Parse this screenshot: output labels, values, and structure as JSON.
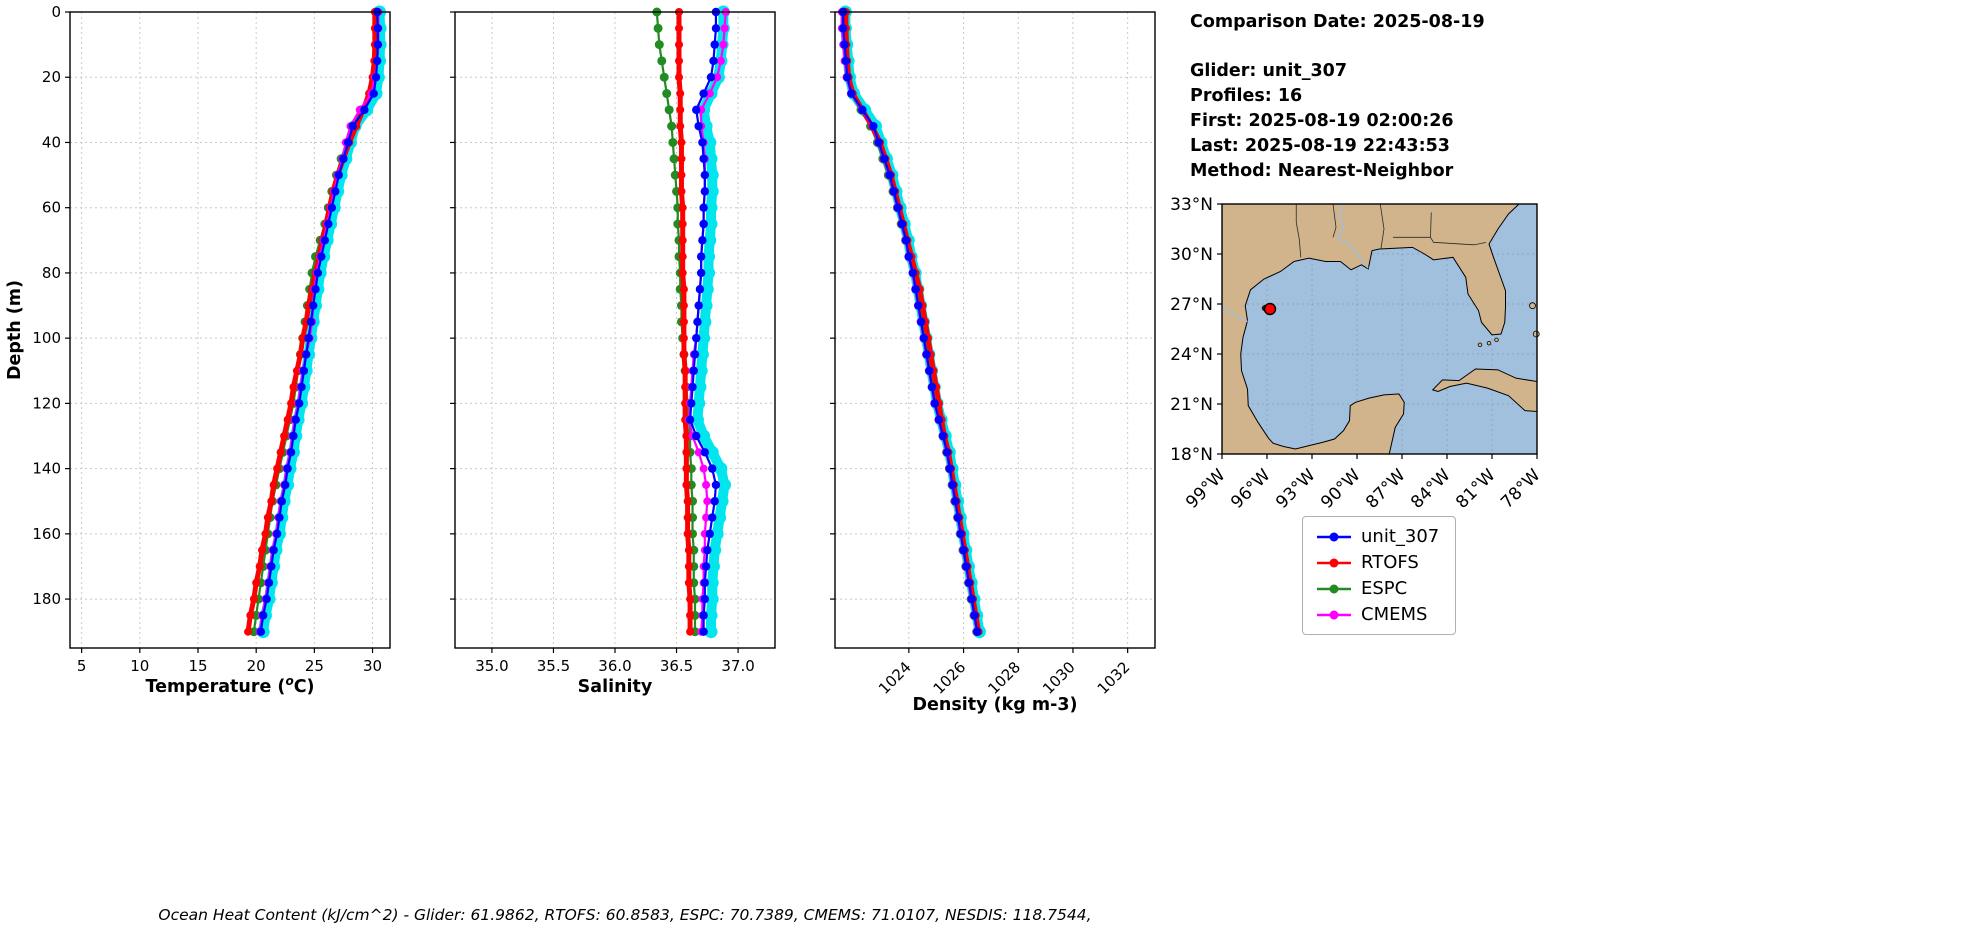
{
  "info": {
    "comparison_date": "Comparison Date: 2025-08-19",
    "lines": [
      "Glider: unit_307",
      "Profiles: 16",
      "First: 2025-08-19 02:00:26",
      "Last: 2025-08-19 22:43:53",
      "Method: Nearest-Neighbor"
    ]
  },
  "footer": {
    "ohc_text": "Ocean Heat Content (kJ/cm^2) - Glider: 61.9862,  RTOFS: 60.8583,  ESPC: 70.7389,  CMEMS: 71.0107,  NESDIS: 118.7544,"
  },
  "legend": {
    "items": [
      {
        "label": "unit_307",
        "color": "#0000ff"
      },
      {
        "label": "RTOFS",
        "color": "#ff0000"
      },
      {
        "label": "ESPC",
        "color": "#228b22"
      },
      {
        "label": "CMEMS",
        "color": "#ff00ff"
      }
    ]
  },
  "map": {
    "lat_tick_labels": [
      "33°N",
      "30°N",
      "27°N",
      "24°N",
      "21°N",
      "18°N"
    ],
    "lat_tick_values": [
      33,
      30,
      27,
      24,
      21,
      18
    ],
    "lon_tick_labels": [
      "99°W",
      "96°W",
      "93°W",
      "90°W",
      "87°W",
      "84°W",
      "81°W",
      "78°W"
    ],
    "lon_tick_values": [
      -99,
      -96,
      -93,
      -90,
      -87,
      -84,
      -81,
      -78
    ],
    "extent": {
      "lon_min": -99,
      "lon_max": -78,
      "lat_min": 18,
      "lat_max": 33
    },
    "land_color": "#d2b48c",
    "water_color": "#a0c0de",
    "glider_marker": {
      "lon": -95.8,
      "lat": 26.7,
      "color": "#ff0000"
    },
    "track_marker": {
      "lon": -96.05,
      "lat": 26.75,
      "color": "#1a1a1a"
    }
  },
  "chart_data": [
    {
      "type": "line",
      "xlabel": {
        "pre": "Temperature (",
        "sup": "o",
        "post": "C)"
      },
      "ylabel": "Depth (m)",
      "xlim": [
        4,
        31.5
      ],
      "ylim": [
        0,
        195
      ],
      "xticks": [
        5,
        10,
        15,
        20,
        25,
        30
      ],
      "xtick_labels": [
        "5",
        "10",
        "15",
        "20",
        "25",
        "30"
      ],
      "yticks": [
        0,
        20,
        40,
        60,
        80,
        100,
        120,
        140,
        160,
        180
      ],
      "ytick_labels": [
        "0",
        "20",
        "40",
        "60",
        "80",
        "100",
        "120",
        "140",
        "160",
        "180"
      ],
      "rotate_xticks": false,
      "grid": true,
      "depths": [
        0,
        5,
        10,
        15,
        20,
        25,
        30,
        35,
        40,
        45,
        50,
        55,
        60,
        65,
        70,
        75,
        80,
        85,
        90,
        95,
        100,
        105,
        110,
        115,
        120,
        125,
        130,
        135,
        140,
        145,
        150,
        155,
        160,
        165,
        170,
        175,
        180,
        185,
        190
      ],
      "series": [
        {
          "name": "glider_all_profiles",
          "color": "#00e5ee",
          "width": 10,
          "marker": 6.5,
          "values": [
            30.6,
            30.65,
            30.65,
            30.6,
            30.5,
            30.3,
            29.5,
            28.5,
            28.1,
            27.7,
            27.3,
            27.0,
            26.7,
            26.4,
            26.1,
            25.8,
            25.5,
            25.3,
            25.1,
            24.9,
            24.7,
            24.5,
            24.3,
            24.1,
            23.9,
            23.6,
            23.4,
            23.2,
            22.9,
            22.7,
            22.4,
            22.2,
            22.0,
            21.7,
            21.5,
            21.3,
            21.1,
            20.8,
            20.6
          ]
        },
        {
          "name": "ESPC",
          "color": "#228b22",
          "width": 2.2,
          "marker": 4.5,
          "values": [
            30.3,
            30.3,
            30.3,
            30.25,
            30.1,
            29.8,
            29.0,
            28.3,
            27.8,
            27.3,
            26.9,
            26.5,
            26.2,
            25.9,
            25.5,
            25.1,
            24.8,
            24.6,
            24.4,
            24.2,
            24.0,
            23.8,
            23.6,
            23.4,
            23.2,
            22.9,
            22.6,
            22.3,
            22.0,
            21.7,
            21.4,
            21.2,
            21.0,
            20.8,
            20.6,
            20.4,
            20.2,
            20.0,
            19.8
          ]
        },
        {
          "name": "RTOFS",
          "color": "#ff0000",
          "width": 5,
          "marker": 4,
          "values": [
            30.2,
            30.2,
            30.2,
            30.15,
            30.0,
            29.7,
            29.2,
            28.6,
            28.0,
            27.5,
            27.0,
            26.6,
            26.3,
            26.0,
            25.7,
            25.4,
            25.1,
            24.8,
            24.5,
            24.3,
            24.0,
            23.8,
            23.5,
            23.2,
            23.0,
            22.7,
            22.4,
            22.1,
            21.8,
            21.5,
            21.3,
            21.0,
            20.8,
            20.5,
            20.3,
            20.0,
            19.8,
            19.5,
            19.3
          ]
        },
        {
          "name": "CMEMS",
          "color": "#ff00ff",
          "width": 2.2,
          "marker": 4,
          "values": [
            30.5,
            30.5,
            30.5,
            30.4,
            30.2,
            29.9,
            28.9,
            28.1,
            27.7,
            27.4,
            27.0,
            26.7,
            26.4,
            26.1,
            25.8,
            25.5,
            25.2,
            25.0,
            24.9,
            24.8,
            24.6,
            24.3,
            24.0,
            23.8,
            23.6,
            23.3,
            23.1,
            22.9,
            22.6,
            22.4,
            22.1,
            21.9,
            21.7,
            21.4,
            21.2,
            21.0,
            20.8,
            20.5,
            20.3
          ]
        },
        {
          "name": "unit_307",
          "color": "#0000ff",
          "width": 2.2,
          "marker": 4.2,
          "values": [
            30.4,
            30.45,
            30.45,
            30.4,
            30.3,
            30.1,
            29.3,
            28.3,
            27.9,
            27.5,
            27.1,
            26.8,
            26.5,
            26.2,
            25.9,
            25.6,
            25.3,
            25.1,
            24.9,
            24.7,
            24.5,
            24.3,
            24.1,
            23.9,
            23.7,
            23.4,
            23.2,
            23.0,
            22.7,
            22.5,
            22.2,
            22.0,
            21.8,
            21.5,
            21.3,
            21.1,
            20.9,
            20.6,
            20.4
          ]
        }
      ]
    },
    {
      "type": "line",
      "xlabel": "Salinity",
      "xlim": [
        34.7,
        37.3
      ],
      "ylim": [
        0,
        195
      ],
      "xticks": [
        35.0,
        35.5,
        36.0,
        36.5,
        37.0
      ],
      "xtick_labels": [
        "35.0",
        "35.5",
        "36.0",
        "36.5",
        "37.0"
      ],
      "yticks": [
        0,
        20,
        40,
        60,
        80,
        100,
        120,
        140,
        160,
        180
      ],
      "ytick_labels": [],
      "rotate_xticks": false,
      "grid": true,
      "depths": [
        0,
        5,
        10,
        15,
        20,
        25,
        30,
        35,
        40,
        45,
        50,
        55,
        60,
        65,
        70,
        75,
        80,
        85,
        90,
        95,
        100,
        105,
        110,
        115,
        120,
        125,
        130,
        135,
        140,
        145,
        150,
        155,
        160,
        165,
        170,
        175,
        180,
        185,
        190
      ],
      "series": [
        {
          "name": "glider_all_profiles",
          "color": "#00e5ee",
          "width": 10,
          "marker": 6.5,
          "values": [
            36.88,
            36.88,
            36.87,
            36.86,
            36.84,
            36.78,
            36.72,
            36.74,
            36.77,
            36.78,
            36.79,
            36.79,
            36.78,
            36.78,
            36.77,
            36.76,
            36.76,
            36.75,
            36.74,
            36.73,
            36.72,
            36.71,
            36.7,
            36.69,
            36.68,
            36.67,
            36.72,
            36.79,
            36.86,
            36.89,
            36.87,
            36.85,
            36.83,
            36.81,
            36.8,
            36.79,
            36.79,
            36.78,
            36.78
          ]
        },
        {
          "name": "ESPC",
          "color": "#228b22",
          "width": 2.2,
          "marker": 4.5,
          "values": [
            36.34,
            36.35,
            36.36,
            36.38,
            36.4,
            36.42,
            36.44,
            36.46,
            36.47,
            36.48,
            36.49,
            36.5,
            36.51,
            36.51,
            36.52,
            36.52,
            36.53,
            36.53,
            36.54,
            36.54,
            36.55,
            36.56,
            36.57,
            36.58,
            36.59,
            36.6,
            36.61,
            36.61,
            36.62,
            36.62,
            36.63,
            36.63,
            36.63,
            36.64,
            36.64,
            36.64,
            36.65,
            36.65,
            36.65
          ]
        },
        {
          "name": "RTOFS",
          "color": "#ff0000",
          "width": 5,
          "marker": 4,
          "values": [
            36.52,
            36.52,
            36.52,
            36.52,
            36.52,
            36.53,
            36.53,
            36.53,
            36.54,
            36.54,
            36.54,
            36.54,
            36.55,
            36.55,
            36.55,
            36.55,
            36.55,
            36.56,
            36.56,
            36.56,
            36.56,
            36.56,
            36.57,
            36.57,
            36.57,
            36.57,
            36.58,
            36.58,
            36.58,
            36.58,
            36.59,
            36.59,
            36.59,
            36.6,
            36.6,
            36.6,
            36.61,
            36.61,
            36.61
          ]
        },
        {
          "name": "CMEMS",
          "color": "#ff00ff",
          "width": 2.2,
          "marker": 4,
          "values": [
            36.9,
            36.89,
            36.88,
            36.86,
            36.83,
            36.77,
            36.7,
            36.7,
            36.72,
            36.73,
            36.73,
            36.73,
            36.72,
            36.72,
            36.71,
            36.7,
            36.7,
            36.69,
            36.68,
            36.67,
            36.66,
            36.64,
            36.63,
            36.62,
            36.61,
            36.6,
            36.63,
            36.68,
            36.72,
            36.74,
            36.75,
            36.74,
            36.73,
            36.73,
            36.72,
            36.72,
            36.71,
            36.71,
            36.7
          ]
        },
        {
          "name": "unit_307",
          "color": "#0000ff",
          "width": 2.2,
          "marker": 4.2,
          "values": [
            36.82,
            36.82,
            36.81,
            36.8,
            36.78,
            36.72,
            36.66,
            36.68,
            36.71,
            36.72,
            36.73,
            36.73,
            36.72,
            36.72,
            36.71,
            36.7,
            36.7,
            36.69,
            36.68,
            36.67,
            36.66,
            36.65,
            36.64,
            36.63,
            36.62,
            36.61,
            36.66,
            36.73,
            36.79,
            36.82,
            36.81,
            36.79,
            36.77,
            36.75,
            36.74,
            36.73,
            36.73,
            36.72,
            36.72
          ]
        }
      ]
    },
    {
      "type": "line",
      "xlabel": "Density (kg m-3)",
      "xlim": [
        1021.3,
        1033
      ],
      "ylim": [
        0,
        195
      ],
      "xticks": [
        1024,
        1026,
        1028,
        1030,
        1032
      ],
      "xtick_labels": [
        "1024",
        "1026",
        "1028",
        "1030",
        "1032"
      ],
      "yticks": [
        0,
        20,
        40,
        60,
        80,
        100,
        120,
        140,
        160,
        180
      ],
      "ytick_labels": [],
      "rotate_xticks": true,
      "grid": true,
      "depths": [
        0,
        5,
        10,
        15,
        20,
        25,
        30,
        35,
        40,
        45,
        50,
        55,
        60,
        65,
        70,
        75,
        80,
        85,
        90,
        95,
        100,
        105,
        110,
        115,
        120,
        125,
        130,
        135,
        140,
        145,
        150,
        155,
        160,
        165,
        170,
        175,
        180,
        185,
        190
      ],
      "series": [
        {
          "name": "glider_all_profiles",
          "color": "#00e5ee",
          "width": 10,
          "marker": 6.5,
          "values": [
            1021.68,
            1021.68,
            1021.73,
            1021.78,
            1021.83,
            1021.98,
            1022.38,
            1022.78,
            1022.98,
            1023.18,
            1023.38,
            1023.53,
            1023.68,
            1023.83,
            1023.98,
            1024.08,
            1024.23,
            1024.33,
            1024.43,
            1024.53,
            1024.63,
            1024.73,
            1024.83,
            1024.93,
            1025.03,
            1025.18,
            1025.33,
            1025.48,
            1025.58,
            1025.68,
            1025.78,
            1025.88,
            1025.98,
            1026.08,
            1026.18,
            1026.28,
            1026.38,
            1026.48,
            1026.58
          ]
        },
        {
          "name": "ESPC",
          "color": "#228b22",
          "width": 2.2,
          "marker": 4.5,
          "values": [
            1021.65,
            1021.65,
            1021.68,
            1021.72,
            1021.78,
            1021.92,
            1022.25,
            1022.6,
            1022.85,
            1023.05,
            1023.25,
            1023.42,
            1023.58,
            1023.72,
            1023.88,
            1024.02,
            1024.18,
            1024.3,
            1024.4,
            1024.5,
            1024.6,
            1024.7,
            1024.8,
            1024.9,
            1025.0,
            1025.12,
            1025.25,
            1025.38,
            1025.48,
            1025.58,
            1025.68,
            1025.78,
            1025.88,
            1025.98,
            1026.08,
            1026.18,
            1026.28,
            1026.38,
            1026.48
          ]
        },
        {
          "name": "RTOFS",
          "color": "#ff0000",
          "width": 5,
          "marker": 4,
          "values": [
            1021.7,
            1021.7,
            1021.72,
            1021.75,
            1021.8,
            1021.95,
            1022.3,
            1022.65,
            1022.95,
            1023.15,
            1023.35,
            1023.5,
            1023.65,
            1023.8,
            1023.95,
            1024.1,
            1024.25,
            1024.4,
            1024.5,
            1024.6,
            1024.7,
            1024.8,
            1024.9,
            1025.0,
            1025.1,
            1025.2,
            1025.3,
            1025.45,
            1025.55,
            1025.65,
            1025.75,
            1025.85,
            1025.95,
            1026.05,
            1026.15,
            1026.25,
            1026.35,
            1026.45,
            1026.55
          ]
        },
        {
          "name": "CMEMS",
          "color": "#ff00ff",
          "width": 2.2,
          "marker": 4,
          "values": [
            1021.55,
            1021.55,
            1021.6,
            1021.65,
            1021.72,
            1021.88,
            1022.28,
            1022.68,
            1022.88,
            1023.08,
            1023.28,
            1023.43,
            1023.58,
            1023.73,
            1023.88,
            1023.98,
            1024.13,
            1024.23,
            1024.33,
            1024.43,
            1024.53,
            1024.63,
            1024.73,
            1024.83,
            1024.93,
            1025.08,
            1025.23,
            1025.38,
            1025.48,
            1025.58,
            1025.68,
            1025.78,
            1025.88,
            1025.98,
            1026.08,
            1026.18,
            1026.28,
            1026.38,
            1026.48
          ]
        },
        {
          "name": "unit_307",
          "color": "#0000ff",
          "width": 2.2,
          "marker": 4.2,
          "values": [
            1021.6,
            1021.6,
            1021.65,
            1021.7,
            1021.75,
            1021.9,
            1022.3,
            1022.7,
            1022.9,
            1023.1,
            1023.3,
            1023.45,
            1023.6,
            1023.75,
            1023.9,
            1024.0,
            1024.15,
            1024.25,
            1024.35,
            1024.45,
            1024.55,
            1024.65,
            1024.75,
            1024.85,
            1024.95,
            1025.1,
            1025.25,
            1025.4,
            1025.5,
            1025.6,
            1025.7,
            1025.8,
            1025.9,
            1026.0,
            1026.1,
            1026.2,
            1026.3,
            1026.4,
            1026.5
          ]
        }
      ]
    }
  ]
}
